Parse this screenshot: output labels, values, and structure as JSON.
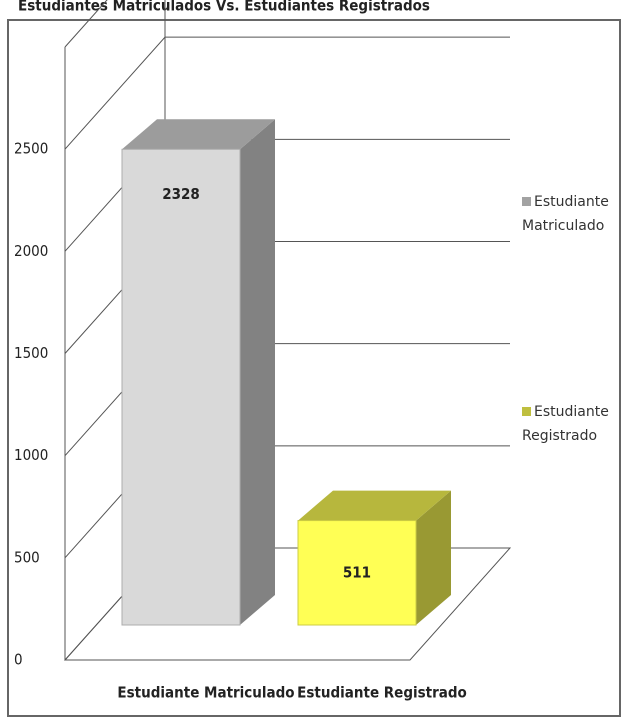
{
  "chart_data": {
    "type": "bar3d",
    "title": "Estudiantes Matriculados Vs. Estudiantes Registrados",
    "categories": [
      "Estudiante Matriculado",
      "Estudiante Registrado"
    ],
    "values": [
      2328,
      511
    ],
    "colors": [
      "#d9d9d9",
      "#ffff55"
    ],
    "ylim": [
      0,
      3000
    ],
    "yticks": [
      0,
      500,
      1000,
      1500,
      2000,
      2500
    ],
    "grid": true,
    "legend": "right"
  }
}
